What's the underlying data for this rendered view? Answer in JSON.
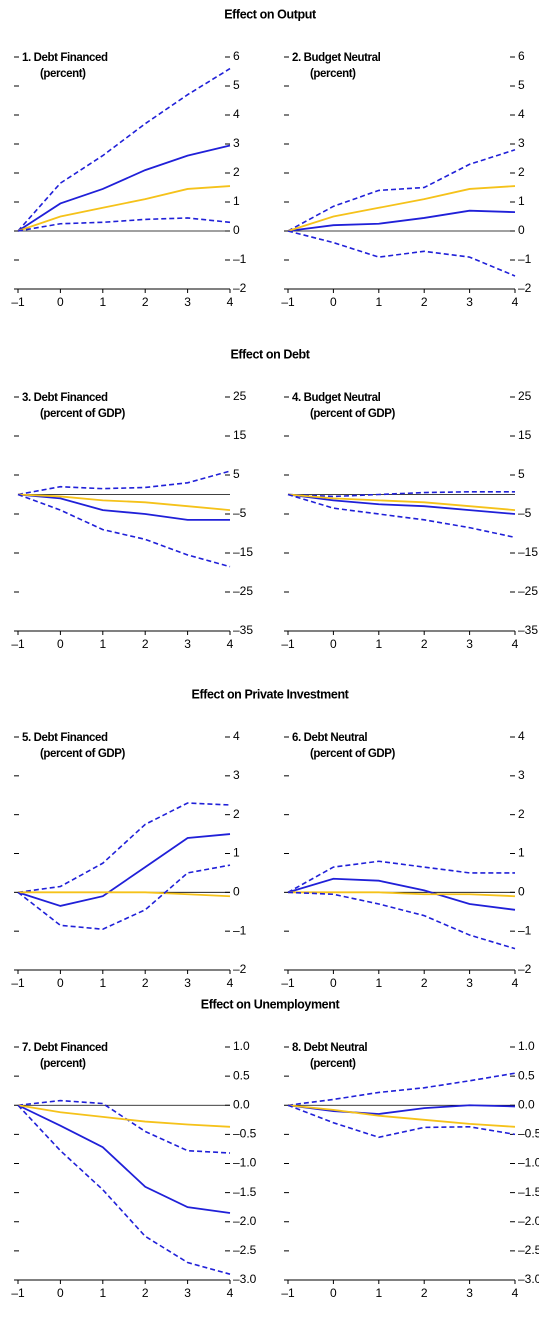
{
  "sections": [
    "Effect on Output",
    "Effect on Debt",
    "Effect on Private Investment",
    "Effect on Unemployment"
  ],
  "chart_data": [
    {
      "type": "line",
      "title": "1. Debt Financed",
      "subtitle": "(percent)",
      "x": [
        -1,
        0,
        1,
        2,
        3,
        4
      ],
      "xlim": [
        -1,
        4
      ],
      "xticks": [
        {
          "value": -1,
          "label": "–1"
        },
        0,
        1,
        2,
        3,
        4
      ],
      "ylim": [
        -2,
        6
      ],
      "yticks": [
        {
          "value": -2,
          "label": "–2"
        },
        {
          "value": -1,
          "label": "–1"
        },
        0,
        1,
        2,
        3,
        4,
        5,
        6
      ],
      "hline": 0,
      "series": [
        {
          "color": "#2020d8",
          "dash": true,
          "values": [
            0,
            1.65,
            2.6,
            3.7,
            4.7,
            5.6
          ]
        },
        {
          "color": "#2020d8",
          "dash": false,
          "values": [
            0,
            0.95,
            1.45,
            2.1,
            2.6,
            2.95
          ]
        },
        {
          "color": "#f5c21a",
          "dash": false,
          "values": [
            0,
            0.5,
            0.8,
            1.1,
            1.45,
            1.55
          ]
        },
        {
          "color": "#2020d8",
          "dash": true,
          "values": [
            0,
            0.25,
            0.3,
            0.4,
            0.45,
            0.3
          ]
        }
      ]
    },
    {
      "type": "line",
      "title": "2. Budget Neutral",
      "subtitle": "(percent)",
      "x": [
        -1,
        0,
        1,
        2,
        3,
        4
      ],
      "xlim": [
        -1,
        4
      ],
      "xticks": [
        {
          "value": -1,
          "label": "–1"
        },
        0,
        1,
        2,
        3,
        4
      ],
      "ylim": [
        -2,
        6
      ],
      "yticks": [
        {
          "value": -2,
          "label": "–2"
        },
        {
          "value": -1,
          "label": "–1"
        },
        0,
        1,
        2,
        3,
        4,
        5,
        6
      ],
      "hline": 0,
      "series": [
        {
          "color": "#2020d8",
          "dash": true,
          "values": [
            0,
            0.85,
            1.4,
            1.5,
            2.3,
            2.8
          ]
        },
        {
          "color": "#2020d8",
          "dash": false,
          "values": [
            0,
            0.2,
            0.25,
            0.45,
            0.7,
            0.65
          ]
        },
        {
          "color": "#f5c21a",
          "dash": false,
          "values": [
            0,
            0.5,
            0.8,
            1.1,
            1.45,
            1.55
          ]
        },
        {
          "color": "#2020d8",
          "dash": true,
          "values": [
            0,
            -0.4,
            -0.9,
            -0.7,
            -0.9,
            -1.55
          ]
        }
      ]
    },
    {
      "type": "line",
      "title": "3. Debt Financed",
      "subtitle": "(percent of GDP)",
      "x": [
        -1,
        0,
        1,
        2,
        3,
        4
      ],
      "xlim": [
        -1,
        4
      ],
      "xticks": [
        {
          "value": -1,
          "label": "–1"
        },
        0,
        1,
        2,
        3,
        4
      ],
      "ylim": [
        -35,
        25
      ],
      "yticks": [
        {
          "value": -35,
          "label": "–35"
        },
        {
          "value": -25,
          "label": "–25"
        },
        {
          "value": -15,
          "label": "–15"
        },
        {
          "value": -5,
          "label": "–5"
        },
        5,
        15,
        25
      ],
      "hline": 0,
      "series": [
        {
          "color": "#2020d8",
          "dash": true,
          "values": [
            0,
            2,
            1.5,
            1.8,
            3,
            6
          ]
        },
        {
          "color": "#2020d8",
          "dash": false,
          "values": [
            0,
            -1,
            -4,
            -5,
            -6.5,
            -6.5
          ]
        },
        {
          "color": "#f5c21a",
          "dash": false,
          "values": [
            0,
            -0.5,
            -1.5,
            -2,
            -3,
            -4
          ]
        },
        {
          "color": "#2020d8",
          "dash": true,
          "values": [
            0,
            -4,
            -9,
            -11.5,
            -15.5,
            -18.5
          ]
        }
      ]
    },
    {
      "type": "line",
      "title": "4. Budget Neutral",
      "subtitle": "(percent of GDP)",
      "x": [
        -1,
        0,
        1,
        2,
        3,
        4
      ],
      "xlim": [
        -1,
        4
      ],
      "xticks": [
        {
          "value": -1,
          "label": "–1"
        },
        0,
        1,
        2,
        3,
        4
      ],
      "ylim": [
        -35,
        25
      ],
      "yticks": [
        {
          "value": -35,
          "label": "–35"
        },
        {
          "value": -25,
          "label": "–25"
        },
        {
          "value": -15,
          "label": "–15"
        },
        {
          "value": -5,
          "label": "–5"
        },
        5,
        15,
        25
      ],
      "hline": 0,
      "series": [
        {
          "color": "#2020d8",
          "dash": true,
          "values": [
            0,
            -0.5,
            0,
            0.5,
            0.7,
            0.7
          ]
        },
        {
          "color": "#2020d8",
          "dash": false,
          "values": [
            0,
            -1.5,
            -2.5,
            -3,
            -4,
            -5
          ]
        },
        {
          "color": "#f5c21a",
          "dash": false,
          "values": [
            0,
            -1,
            -1.5,
            -2,
            -3,
            -4
          ]
        },
        {
          "color": "#2020d8",
          "dash": true,
          "values": [
            0,
            -3.5,
            -5,
            -6.5,
            -8.5,
            -11
          ]
        }
      ]
    },
    {
      "type": "line",
      "title": "5. Debt Financed",
      "subtitle": "(percent of GDP)",
      "x": [
        -1,
        0,
        1,
        2,
        3,
        4
      ],
      "xlim": [
        -1,
        4
      ],
      "xticks": [
        {
          "value": -1,
          "label": "–1"
        },
        0,
        1,
        2,
        3,
        4
      ],
      "ylim": [
        -2,
        4
      ],
      "yticks": [
        {
          "value": -2,
          "label": "–2"
        },
        {
          "value": -1,
          "label": "–1"
        },
        0,
        1,
        2,
        3,
        4
      ],
      "hline": 0,
      "series": [
        {
          "color": "#2020d8",
          "dash": true,
          "values": [
            0,
            0.15,
            0.75,
            1.75,
            2.3,
            2.25
          ]
        },
        {
          "color": "#2020d8",
          "dash": false,
          "values": [
            0,
            -0.35,
            -0.1,
            0.65,
            1.4,
            1.5
          ]
        },
        {
          "color": "#f5c21a",
          "dash": false,
          "values": [
            0,
            0,
            0,
            0,
            -0.05,
            -0.1
          ]
        },
        {
          "color": "#2020d8",
          "dash": true,
          "values": [
            0,
            -0.85,
            -0.95,
            -0.45,
            0.5,
            0.7
          ]
        }
      ]
    },
    {
      "type": "line",
      "title": "6. Debt Neutral",
      "subtitle": "(percent of GDP)",
      "x": [
        -1,
        0,
        1,
        2,
        3,
        4
      ],
      "xlim": [
        -1,
        4
      ],
      "xticks": [
        {
          "value": -1,
          "label": "–1"
        },
        0,
        1,
        2,
        3,
        4
      ],
      "ylim": [
        -2,
        4
      ],
      "yticks": [
        {
          "value": -2,
          "label": "–2"
        },
        {
          "value": -1,
          "label": "–1"
        },
        0,
        1,
        2,
        3,
        4
      ],
      "hline": 0,
      "series": [
        {
          "color": "#2020d8",
          "dash": true,
          "values": [
            0,
            0.65,
            0.8,
            0.65,
            0.5,
            0.5
          ]
        },
        {
          "color": "#2020d8",
          "dash": false,
          "values": [
            0,
            0.35,
            0.3,
            0.05,
            -0.3,
            -0.45
          ]
        },
        {
          "color": "#f5c21a",
          "dash": false,
          "values": [
            0,
            0,
            0,
            -0.05,
            -0.05,
            -0.1
          ]
        },
        {
          "color": "#2020d8",
          "dash": true,
          "values": [
            0,
            -0.05,
            -0.3,
            -0.6,
            -1.1,
            -1.45
          ]
        }
      ]
    },
    {
      "type": "line",
      "title": "7. Debt Financed",
      "subtitle": "(percent)",
      "x": [
        -1,
        0,
        1,
        2,
        3,
        4
      ],
      "xlim": [
        -1,
        4
      ],
      "xticks": [
        {
          "value": -1,
          "label": "–1"
        },
        0,
        1,
        2,
        3,
        4
      ],
      "ylim": [
        -3,
        1
      ],
      "yticks": [
        {
          "value": -3,
          "label": "–3.0"
        },
        {
          "value": -2.5,
          "label": "–2.5"
        },
        {
          "value": -2,
          "label": "–2.0"
        },
        {
          "value": -1.5,
          "label": "–1.5"
        },
        {
          "value": -1,
          "label": "–1.0"
        },
        {
          "value": -0.5,
          "label": "–0.5"
        },
        {
          "value": 0,
          "label": "0.0"
        },
        0.5,
        {
          "value": 1,
          "label": "1.0"
        }
      ],
      "hline": 0,
      "series": [
        {
          "color": "#2020d8",
          "dash": true,
          "values": [
            0,
            0.08,
            0.03,
            -0.45,
            -0.78,
            -0.82
          ]
        },
        {
          "color": "#2020d8",
          "dash": false,
          "values": [
            0,
            -0.35,
            -0.72,
            -1.4,
            -1.75,
            -1.85
          ]
        },
        {
          "color": "#f5c21a",
          "dash": false,
          "values": [
            0,
            -0.12,
            -0.2,
            -0.28,
            -0.33,
            -0.37
          ]
        },
        {
          "color": "#2020d8",
          "dash": true,
          "values": [
            0,
            -0.78,
            -1.45,
            -2.25,
            -2.7,
            -2.9
          ]
        }
      ]
    },
    {
      "type": "line",
      "title": "8. Debt Neutral",
      "subtitle": "(percent)",
      "x": [
        -1,
        0,
        1,
        2,
        3,
        4
      ],
      "xlim": [
        -1,
        4
      ],
      "xticks": [
        {
          "value": -1,
          "label": "–1"
        },
        0,
        1,
        2,
        3,
        4
      ],
      "ylim": [
        -3,
        1
      ],
      "yticks": [
        {
          "value": -3,
          "label": "–3.0"
        },
        {
          "value": -2.5,
          "label": "–2.5"
        },
        {
          "value": -2,
          "label": "–2.0"
        },
        {
          "value": -1.5,
          "label": "–1.5"
        },
        {
          "value": -1,
          "label": "–1.0"
        },
        {
          "value": -0.5,
          "label": "–0.5"
        },
        {
          "value": 0,
          "label": "0.0"
        },
        0.5,
        {
          "value": 1,
          "label": "1.0"
        }
      ],
      "hline": 0,
      "series": [
        {
          "color": "#2020d8",
          "dash": true,
          "values": [
            0,
            0.1,
            0.22,
            0.3,
            0.42,
            0.55
          ]
        },
        {
          "color": "#2020d8",
          "dash": false,
          "values": [
            0,
            -0.1,
            -0.15,
            -0.05,
            0,
            -0.02
          ]
        },
        {
          "color": "#f5c21a",
          "dash": false,
          "values": [
            0,
            -0.08,
            -0.18,
            -0.25,
            -0.32,
            -0.37
          ]
        },
        {
          "color": "#2020d8",
          "dash": true,
          "values": [
            0,
            -0.3,
            -0.55,
            -0.38,
            -0.37,
            -0.5
          ]
        }
      ]
    }
  ]
}
